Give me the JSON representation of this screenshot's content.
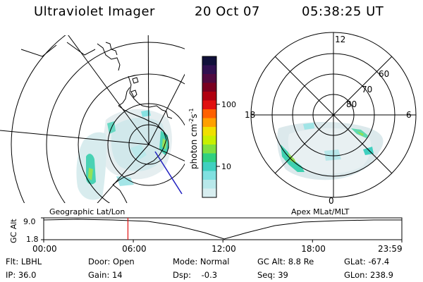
{
  "header": {
    "title": "Ultraviolet Imager",
    "date": "20 Oct 07",
    "time": "05:38:25 UT"
  },
  "colorbar": {
    "unit_label": "photon cm",
    "exp1": "-2",
    "unit_mid": "s",
    "exp2": "-1",
    "tick_100": "100",
    "tick_10": "10",
    "colors": [
      "#10103a",
      "#301050",
      "#500a40",
      "#7a0020",
      "#b00010",
      "#e01010",
      "#ff6000",
      "#ffa000",
      "#f0e000",
      "#c8f000",
      "#80e040",
      "#30d080",
      "#40d0c0",
      "#80e0e0",
      "#b8e8ea",
      "#d8eef0"
    ]
  },
  "geo_map": {
    "caption": "Geographic Lat/Lon"
  },
  "apex_map": {
    "caption": "Apex MLat/MLT",
    "mlt_labels": {
      "top": "12",
      "left": "18",
      "right": "6",
      "bottom": "0"
    },
    "lat_labels": [
      "60",
      "70",
      "80"
    ]
  },
  "altitude_plot": {
    "ylabel": "GC Alt",
    "y_top": "9.0",
    "y_bottom": "1.8",
    "x_ticks": [
      "00:00",
      "06:00",
      "12:00",
      "18:00",
      "23:59"
    ],
    "current_time_hours": 5.64
  },
  "status": {
    "flt": "Flt: LBHL",
    "ip": "IP: 36.0",
    "door": "Door: Open",
    "gain": "Gain: 14",
    "mode": "Mode: Normal",
    "dsp": "Dsp:    -0.3",
    "gcalt": "GC Alt: 8.8 Re",
    "seq": "Seq: 39",
    "glat": "GLat: -67.4",
    "glon": "GLon: 238.9"
  }
}
